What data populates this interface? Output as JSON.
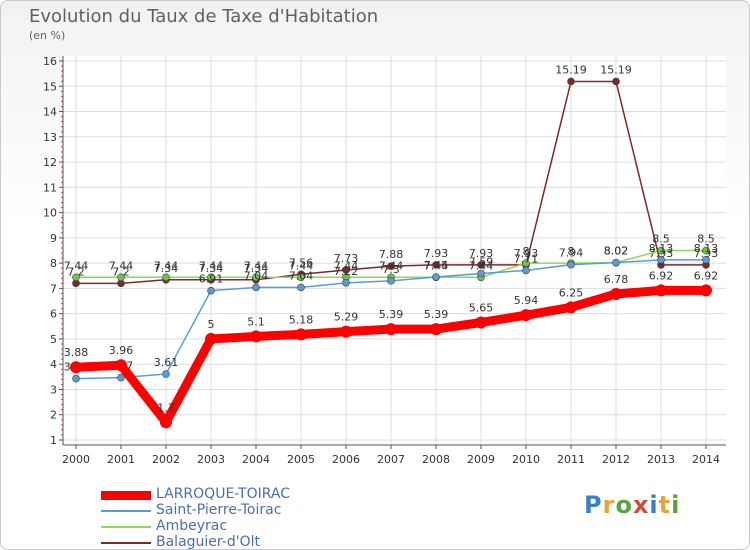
{
  "header": {
    "title": "Evolution du Taux de Taxe d'Habitation",
    "subtitle": "(en %)"
  },
  "logo": {
    "text": "Proxiti",
    "colors": [
      "#3b7fc4",
      "#e8a33a",
      "#5aa33a",
      "#d24b3a",
      "#3b7fc4",
      "#e8a33a",
      "#5aa33a"
    ]
  },
  "chart_data": {
    "type": "line",
    "x": [
      "2000",
      "2001",
      "2002",
      "2003",
      "2004",
      "2005",
      "2006",
      "2007",
      "2008",
      "2009",
      "2010",
      "2011",
      "2012",
      "2013",
      "2014"
    ],
    "ylim": [
      1,
      16
    ],
    "yticks": [
      "1",
      "2",
      "3",
      "4",
      "5",
      "6",
      "7",
      "8",
      "9",
      "10",
      "11",
      "12",
      "13",
      "14",
      "15",
      "16"
    ],
    "grid": true,
    "legend_position": "bottom-left",
    "series": [
      {
        "name": "LARROQUE-TOIRAC",
        "color": "#ff0000",
        "values": [
          3.88,
          3.96,
          1.7,
          5,
          5.1,
          5.18,
          5.29,
          5.39,
          5.39,
          5.65,
          5.94,
          6.25,
          6.78,
          6.92,
          6.92
        ],
        "labels": [
          "3.88",
          "3.96",
          "1.7",
          "5",
          "5.1",
          "5.18",
          "5.29",
          "5.39",
          "5.39",
          "5.65",
          "5.94",
          "6.25",
          "6.78",
          "6.92",
          "6.92"
        ]
      },
      {
        "name": "Saint-Pierre-Toirac",
        "color": "#5b9bd5",
        "values": [
          3.43,
          3.47,
          3.61,
          6.91,
          7.04,
          7.04,
          7.22,
          7.3,
          7.45,
          7.59,
          7.71,
          7.94,
          8.02,
          8.13,
          8.13
        ],
        "labels": [
          "3.43",
          "3.47",
          "3.61",
          "6.91",
          "7.04",
          "7.04",
          "7.22",
          "7.3",
          "7.45",
          "7.59",
          "7.71",
          "7.94",
          "8.02",
          "8.13",
          "8.13"
        ]
      },
      {
        "name": "Ambeyrac",
        "color": "#8fd65a",
        "values": [
          7.44,
          7.44,
          7.44,
          7.44,
          7.44,
          7.44,
          7.44,
          7.44,
          7.44,
          7.44,
          8,
          8,
          8.02,
          8.5,
          8.5
        ],
        "labels": [
          "7.44",
          "7.44",
          "7.44",
          "7.44",
          "7.44",
          "7.44",
          "7.44",
          "7.44",
          "7.44",
          "7.44",
          "8",
          "8",
          "8.02",
          "8.5",
          "8.5"
        ]
      },
      {
        "name": "Balaguier-d'Olt",
        "color": "#7a2a2a",
        "values": [
          7.2,
          7.2,
          7.34,
          7.34,
          7.34,
          7.56,
          7.73,
          7.88,
          7.93,
          7.93,
          7.93,
          15.19,
          15.19,
          7.93,
          7.93
        ],
        "labels": [
          "7.2",
          "7.2",
          "7.34",
          "7.34",
          "7.34",
          "7.56",
          "7.73",
          "7.88",
          "7.93",
          "7.93",
          "7.93",
          "15.19",
          "15.19",
          "7.93",
          "7.93"
        ]
      }
    ]
  }
}
